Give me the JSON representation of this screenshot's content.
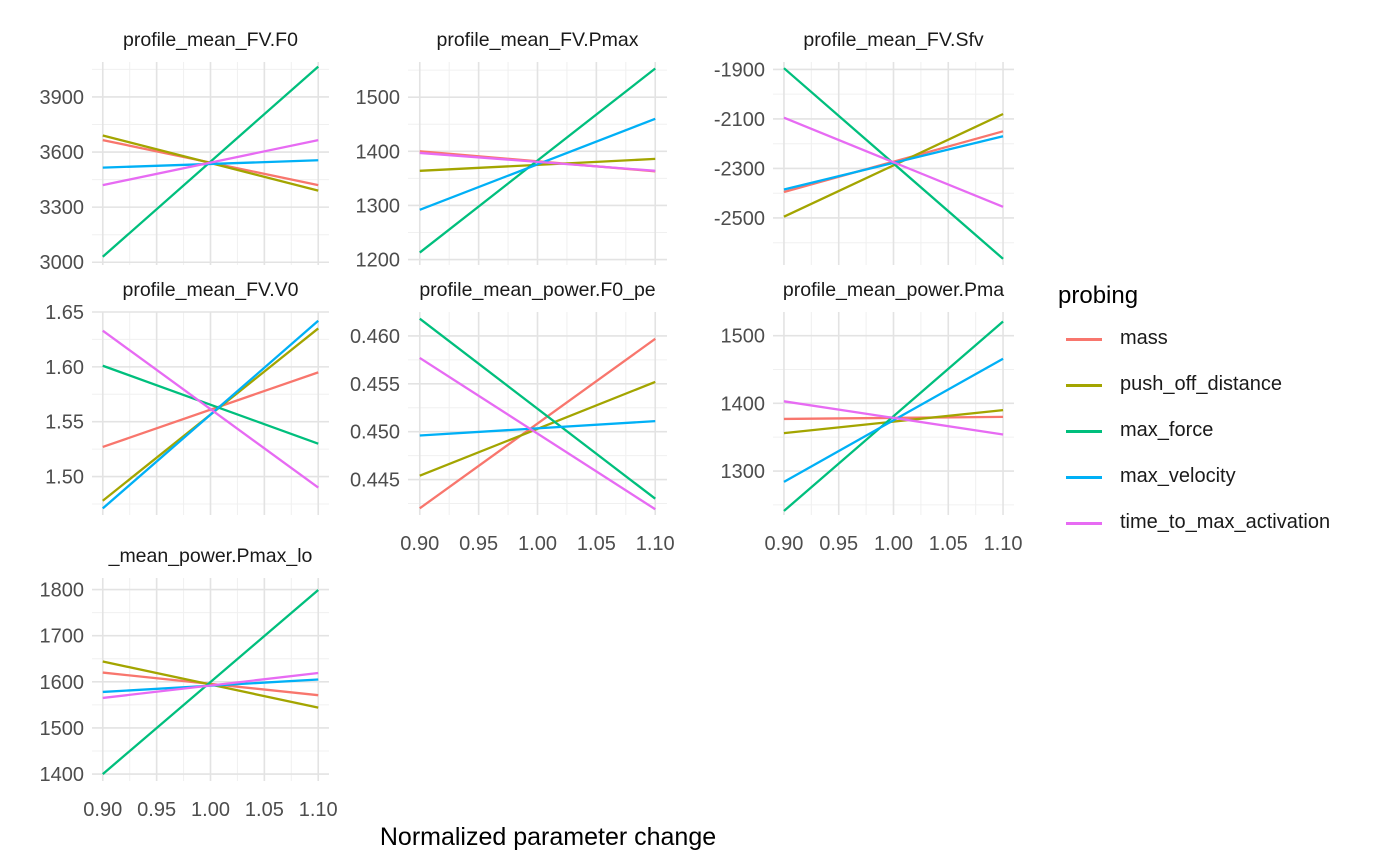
{
  "chart_data": {
    "type": "line",
    "xlabel": "Normalized parameter change",
    "x": [
      0.9,
      1.1
    ],
    "xticks": [
      "0.90",
      "0.95",
      "1.00",
      "1.05",
      "1.10"
    ],
    "legend_title": "probing",
    "legend_position": "right",
    "series_names": [
      "mass",
      "push_off_distance",
      "max_force",
      "max_velocity",
      "time_to_max_activation"
    ],
    "colors": {
      "mass": "#F8766D",
      "push_off_distance": "#A3A500",
      "max_force": "#00BF7D",
      "max_velocity": "#00B0F6",
      "time_to_max_activation": "#E76BF3"
    },
    "grid": true,
    "panels": [
      {
        "title": "profile_mean_FV.F0",
        "ylim": [
          2985,
          4090
        ],
        "yticks": [
          {
            "v": 3000,
            "t": "3000"
          },
          {
            "v": 3300,
            "t": "3300"
          },
          {
            "v": 3600,
            "t": "3600"
          },
          {
            "v": 3900,
            "t": "3900"
          }
        ],
        "series": [
          {
            "name": "mass",
            "values": [
              3665,
              3420
            ]
          },
          {
            "name": "push_off_distance",
            "values": [
              3690,
              3390
            ]
          },
          {
            "name": "max_force",
            "values": [
              3030,
              4065
            ]
          },
          {
            "name": "max_velocity",
            "values": [
              3515,
              3555
            ]
          },
          {
            "name": "time_to_max_activation",
            "values": [
              3420,
              3665
            ]
          }
        ]
      },
      {
        "title": "profile_mean_FV.Pmax",
        "ylim": [
          1190,
          1565
        ],
        "yticks": [
          {
            "v": 1200,
            "t": "1200"
          },
          {
            "v": 1300,
            "t": "1300"
          },
          {
            "v": 1400,
            "t": "1400"
          },
          {
            "v": 1500,
            "t": "1500"
          }
        ],
        "series": [
          {
            "name": "mass",
            "values": [
              1400,
              1363
            ]
          },
          {
            "name": "push_off_distance",
            "values": [
              1364,
              1386
            ]
          },
          {
            "name": "max_force",
            "values": [
              1213,
              1553
            ]
          },
          {
            "name": "max_velocity",
            "values": [
              1292,
              1460
            ]
          },
          {
            "name": "time_to_max_activation",
            "values": [
              1397,
              1364
            ]
          }
        ]
      },
      {
        "title": "profile_mean_FV.Sfv",
        "ylim": [
          -2690,
          -1870
        ],
        "yticks": [
          {
            "v": -2500,
            "t": "-2500"
          },
          {
            "v": -2300,
            "t": "-2300"
          },
          {
            "v": -2100,
            "t": "-2100"
          },
          {
            "v": -1900,
            "t": "-1900"
          }
        ],
        "series": [
          {
            "name": "mass",
            "values": [
              -2395,
              -2150
            ]
          },
          {
            "name": "push_off_distance",
            "values": [
              -2495,
              -2080
            ]
          },
          {
            "name": "max_force",
            "values": [
              -1895,
              -2665
            ]
          },
          {
            "name": "max_velocity",
            "values": [
              -2385,
              -2170
            ]
          },
          {
            "name": "time_to_max_activation",
            "values": [
              -2095,
              -2455
            ]
          }
        ]
      },
      {
        "title": "profile_mean_FV.V0",
        "ylim": [
          1.465,
          1.65
        ],
        "yticks": [
          {
            "v": 1.5,
            "t": "1.50"
          },
          {
            "v": 1.55,
            "t": "1.55"
          },
          {
            "v": 1.6,
            "t": "1.60"
          },
          {
            "v": 1.65,
            "t": "1.65"
          }
        ],
        "series": [
          {
            "name": "mass",
            "values": [
              1.527,
              1.595
            ]
          },
          {
            "name": "push_off_distance",
            "values": [
              1.478,
              1.635
            ]
          },
          {
            "name": "max_force",
            "values": [
              1.601,
              1.53
            ]
          },
          {
            "name": "max_velocity",
            "values": [
              1.471,
              1.642
            ]
          },
          {
            "name": "time_to_max_activation",
            "values": [
              1.633,
              1.49
            ]
          }
        ]
      },
      {
        "title": "profile_mean_power.F0_pe",
        "ylim": [
          0.4413,
          0.4625
        ],
        "yticks": [
          {
            "v": 0.445,
            "t": "0.445"
          },
          {
            "v": 0.45,
            "t": "0.450"
          },
          {
            "v": 0.455,
            "t": "0.455"
          },
          {
            "v": 0.46,
            "t": "0.460"
          }
        ],
        "series": [
          {
            "name": "mass",
            "values": [
              0.442,
              0.4597
            ]
          },
          {
            "name": "push_off_distance",
            "values": [
              0.4454,
              0.4552
            ]
          },
          {
            "name": "max_force",
            "values": [
              0.4618,
              0.443
            ]
          },
          {
            "name": "max_velocity",
            "values": [
              0.4496,
              0.4511
            ]
          },
          {
            "name": "time_to_max_activation",
            "values": [
              0.4577,
              0.4419
            ]
          }
        ]
      },
      {
        "title": "profile_mean_power.Pma",
        "ylim": [
          1235,
          1535
        ],
        "yticks": [
          {
            "v": 1300,
            "t": "1300"
          },
          {
            "v": 1400,
            "t": "1400"
          },
          {
            "v": 1500,
            "t": "1500"
          }
        ],
        "series": [
          {
            "name": "mass",
            "values": [
              1377,
              1380
            ]
          },
          {
            "name": "push_off_distance",
            "values": [
              1356,
              1390
            ]
          },
          {
            "name": "max_force",
            "values": [
              1241,
              1521
            ]
          },
          {
            "name": "max_velocity",
            "values": [
              1284,
              1466
            ]
          },
          {
            "name": "time_to_max_activation",
            "values": [
              1403,
              1354
            ]
          }
        ]
      },
      {
        "title": "_mean_power.Pmax_lo",
        "ylim": [
          1385,
          1825
        ],
        "yticks": [
          {
            "v": 1400,
            "t": "1400"
          },
          {
            "v": 1500,
            "t": "1500"
          },
          {
            "v": 1600,
            "t": "1600"
          },
          {
            "v": 1700,
            "t": "1700"
          },
          {
            "v": 1800,
            "t": "1800"
          }
        ],
        "series": [
          {
            "name": "mass",
            "values": [
              1620,
              1571
            ]
          },
          {
            "name": "push_off_distance",
            "values": [
              1644,
              1544
            ]
          },
          {
            "name": "max_force",
            "values": [
              1400,
              1799
            ]
          },
          {
            "name": "max_velocity",
            "values": [
              1578,
              1605
            ]
          },
          {
            "name": "time_to_max_activation",
            "values": [
              1565,
              1619
            ]
          }
        ]
      }
    ]
  }
}
